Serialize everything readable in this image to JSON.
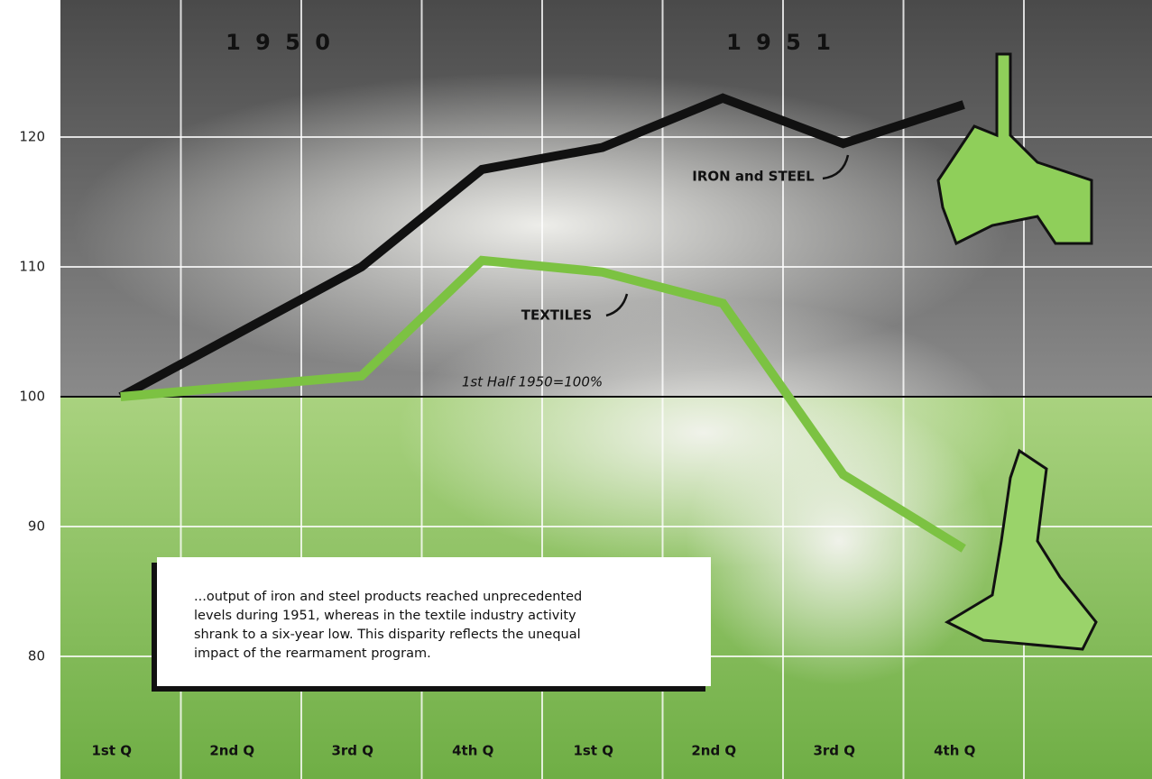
{
  "chart_data": {
    "type": "line",
    "period_labels": [
      "1 9 5 0",
      "1 9 5 1"
    ],
    "categories": [
      "1st Q",
      "2nd Q",
      "3rd Q",
      "4th Q",
      "1st Q",
      "2nd Q",
      "3rd Q",
      "4th Q"
    ],
    "series": [
      {
        "name": "IRON and STEEL",
        "color": "#111111",
        "values": [
          100,
          105,
          110,
          117.5,
          119.2,
          123,
          119.5,
          122.5
        ]
      },
      {
        "name": "TEXTILES",
        "color": "#7cc242",
        "values": [
          100,
          100.8,
          101.6,
          110.5,
          109.6,
          107.2,
          94,
          88.3
        ]
      }
    ],
    "baseline": 100,
    "baseline_label": "1st Half 1950=100%",
    "ylim": [
      71,
      130
    ],
    "yticks": [
      80,
      90,
      100,
      110,
      120
    ],
    "grid": true,
    "note_lines": [
      "...output of iron and steel products reached unprecedented",
      "levels during 1951, whereas in the textile industry activity",
      "shrank to a six-year low. This disparity reflects the unequal",
      "impact of the rearmament program."
    ]
  }
}
